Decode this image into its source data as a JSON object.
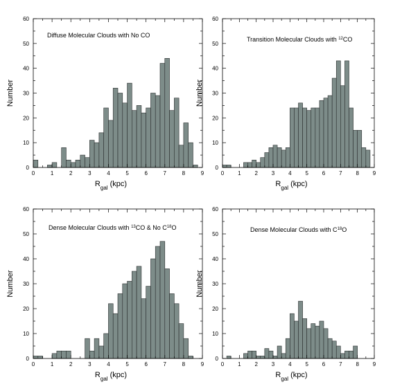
{
  "chart_data": [
    {
      "type": "bar",
      "title": "Diffuse Molecular Clouds with No CO",
      "ylabel": "Number",
      "xlabel": {
        "main": "R",
        "sub": "gal",
        "unit": " (kpc)"
      },
      "xlim": [
        0,
        9
      ],
      "ylim": [
        0,
        60
      ],
      "bin_width": 0.25,
      "xticks": [
        0,
        1,
        2,
        3,
        4,
        5,
        6,
        7,
        8,
        9
      ],
      "yticks": [
        0,
        10,
        20,
        30,
        40,
        50,
        60
      ],
      "bins_start": [
        0,
        0.25,
        0.5,
        0.75,
        1,
        1.25,
        1.5,
        1.75,
        2,
        2.25,
        2.5,
        2.75,
        3,
        3.25,
        3.5,
        3.75,
        4,
        4.25,
        4.5,
        4.75,
        5,
        5.25,
        5.5,
        5.75,
        6,
        6.25,
        6.5,
        6.75,
        7,
        7.25,
        7.5,
        7.75,
        8,
        8.25,
        8.5
      ],
      "values": [
        3,
        0,
        0,
        1,
        2,
        0,
        8,
        3,
        2,
        3,
        5,
        4,
        11,
        10,
        14,
        24,
        19,
        32,
        30,
        26,
        34,
        23,
        25,
        22,
        24,
        30,
        29,
        42,
        44,
        23,
        28,
        9,
        18,
        10,
        1
      ]
    },
    {
      "type": "bar",
      "title": {
        "before": "Transition Molecular Clouds with ",
        "sup": "12",
        "after": "CO"
      },
      "ylabel": "Number",
      "xlabel": {
        "main": "R",
        "sub": "gal",
        "unit": " (kpc)"
      },
      "xlim": [
        0,
        9
      ],
      "ylim": [
        0,
        60
      ],
      "bin_width": 0.25,
      "xticks": [
        0,
        1,
        2,
        3,
        4,
        5,
        6,
        7,
        8,
        9
      ],
      "yticks": [
        0,
        10,
        20,
        30,
        40,
        50,
        60
      ],
      "bins_start": [
        0,
        0.25,
        0.5,
        0.75,
        1,
        1.25,
        1.5,
        1.75,
        2,
        2.25,
        2.5,
        2.75,
        3,
        3.25,
        3.5,
        3.75,
        4,
        4.25,
        4.5,
        4.75,
        5,
        5.25,
        5.5,
        5.75,
        6,
        6.25,
        6.5,
        6.75,
        7,
        7.25,
        7.5,
        7.75,
        8,
        8.25,
        8.5
      ],
      "values": [
        1,
        1,
        0,
        0,
        0,
        2,
        2,
        3,
        2,
        4,
        6,
        8,
        9,
        8,
        7,
        8,
        24,
        24,
        26,
        24,
        23,
        24,
        24,
        27,
        28,
        29,
        36,
        43,
        33,
        43,
        24,
        15,
        15,
        8,
        7
      ]
    },
    {
      "type": "bar",
      "title": {
        "before": "Dense Molecular Clouds with ",
        "sup1": "13",
        "mid": "CO & No C",
        "sup2": "18",
        "after": "O"
      },
      "ylabel": "Number",
      "xlabel": {
        "main": "R",
        "sub": "gal",
        "unit": " (kpc)"
      },
      "xlim": [
        0,
        9
      ],
      "ylim": [
        0,
        60
      ],
      "bin_width": 0.25,
      "xticks": [
        0,
        1,
        2,
        3,
        4,
        5,
        6,
        7,
        8,
        9
      ],
      "yticks": [
        0,
        10,
        20,
        30,
        40,
        50,
        60
      ],
      "bins_start": [
        0,
        0.25,
        0.5,
        0.75,
        1,
        1.25,
        1.5,
        1.75,
        2,
        2.25,
        2.5,
        2.75,
        3,
        3.25,
        3.5,
        3.75,
        4,
        4.25,
        4.5,
        4.75,
        5,
        5.25,
        5.5,
        5.75,
        6,
        6.25,
        6.5,
        6.75,
        7,
        7.25,
        7.5,
        7.75,
        8,
        8.25,
        8.5
      ],
      "values": [
        1,
        1,
        0,
        0,
        2,
        3,
        3,
        3,
        0,
        0,
        0,
        8,
        3,
        8,
        5,
        10,
        22,
        18,
        26,
        30,
        31,
        35,
        37,
        24,
        29,
        40,
        45,
        47,
        36,
        26,
        22,
        14,
        8,
        1,
        0
      ]
    },
    {
      "type": "bar",
      "title": {
        "before": "Dense Molecular Clouds with C",
        "sup": "18",
        "after": "O"
      },
      "ylabel": "Number",
      "xlabel": {
        "main": "R",
        "sub": "gal",
        "unit": " (kpc)"
      },
      "xlim": [
        0,
        9
      ],
      "ylim": [
        0,
        60
      ],
      "bin_width": 0.25,
      "xticks": [
        0,
        1,
        2,
        3,
        4,
        5,
        6,
        7,
        8,
        9
      ],
      "yticks": [
        0,
        10,
        20,
        30,
        40,
        50,
        60
      ],
      "bins_start": [
        0,
        0.25,
        0.5,
        0.75,
        1,
        1.25,
        1.5,
        1.75,
        2,
        2.25,
        2.5,
        2.75,
        3,
        3.25,
        3.5,
        3.75,
        4,
        4.25,
        4.5,
        4.75,
        5,
        5.25,
        5.5,
        5.75,
        6,
        6.25,
        6.5,
        6.75,
        7,
        7.25,
        7.5,
        7.75,
        8,
        8.25,
        8.5
      ],
      "values": [
        0,
        1,
        0,
        0,
        0,
        2,
        3,
        3,
        1,
        1,
        4,
        3,
        1,
        5,
        2,
        8,
        18,
        15,
        23,
        16,
        12,
        14,
        13,
        15,
        12,
        8,
        7,
        5,
        2,
        3,
        3,
        5,
        0,
        0,
        0
      ]
    }
  ]
}
